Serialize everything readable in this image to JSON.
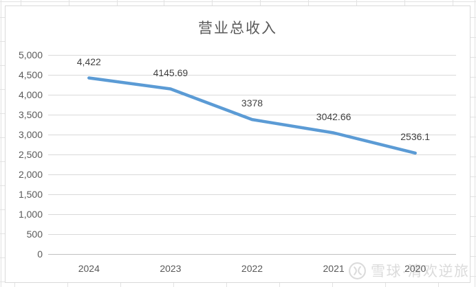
{
  "chart_data": {
    "type": "line",
    "title": "营业总收入",
    "categories": [
      "2024",
      "2023",
      "2022",
      "2021",
      "2020"
    ],
    "series": [
      {
        "name": "营业总收入",
        "values": [
          4422,
          4145.69,
          3378,
          3042.66,
          2536.1
        ],
        "data_labels": [
          "4,422",
          "4145.69",
          "3378",
          "3042.66",
          "2536.1"
        ],
        "color": "#5b9bd5"
      }
    ],
    "xlabel": "",
    "ylabel": "",
    "ylim": [
      0,
      5000
    ],
    "y_tick_step": 500,
    "y_tick_labels": [
      "0",
      "500",
      "1,000",
      "1,500",
      "2,000",
      "2,500",
      "3,000",
      "3,500",
      "4,000",
      "4,500",
      "5,000"
    ],
    "grid": "horizontal",
    "legend_position": "none",
    "gridline_color": "#d9d9d9",
    "axis_line_color": "#bfbfbf",
    "text_color": "#595959",
    "data_label_color": "#404040"
  },
  "watermark": {
    "text": "雪球·清欢逆旅",
    "icon": "xueqiu-logo-icon",
    "color": "#dbdbdb"
  }
}
